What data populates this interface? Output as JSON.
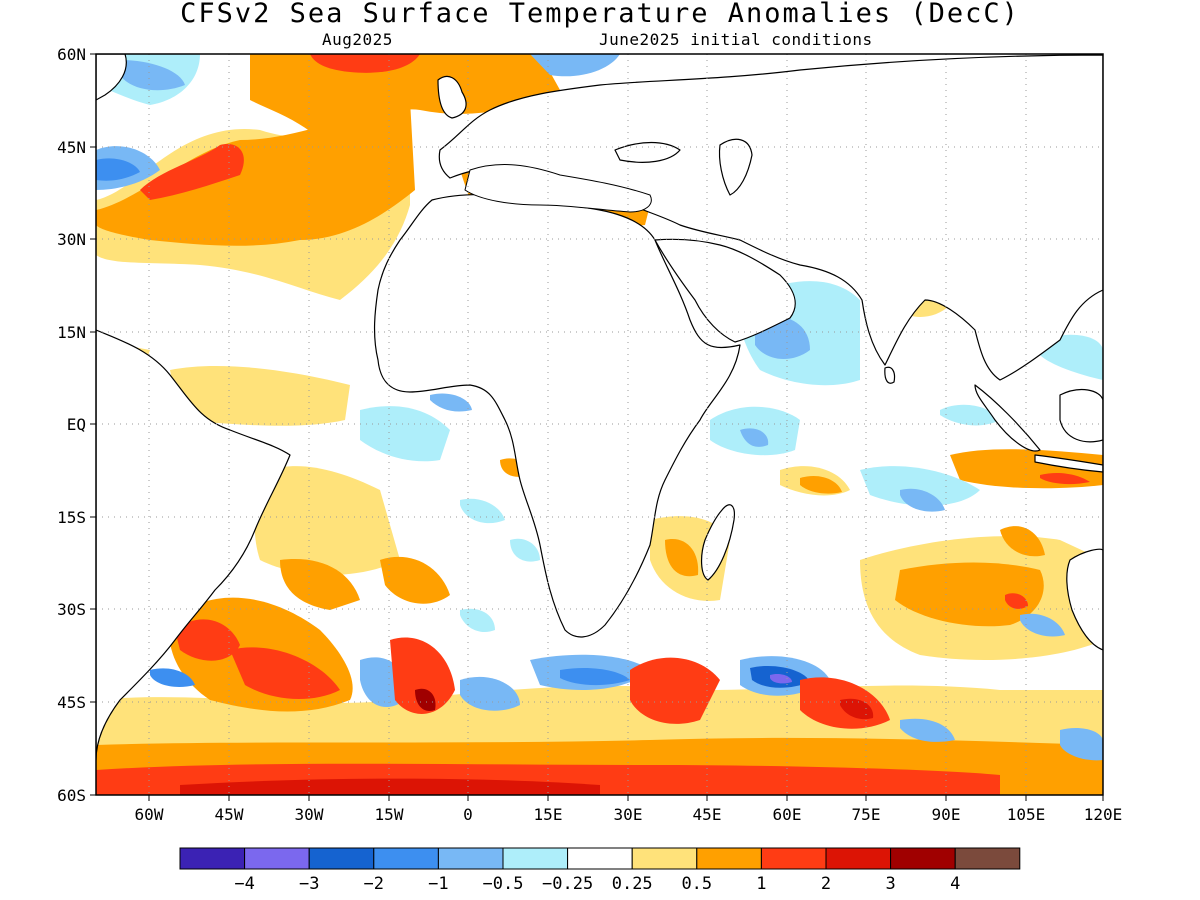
{
  "header": {
    "title": "CFSv2 Sea Surface Temperature Anomalies (DecC)",
    "valid_month": "Aug2025",
    "initial_conditions": "June2025 initial conditions"
  },
  "axes": {
    "lon_labels": [
      "60W",
      "45W",
      "30W",
      "15W",
      "0",
      "15E",
      "30E",
      "45E",
      "60E",
      "75E",
      "90E",
      "105E",
      "120E"
    ],
    "lat_labels": [
      "60N",
      "45N",
      "30N",
      "15N",
      "EQ",
      "15S",
      "30S",
      "45S",
      "60S"
    ]
  },
  "colorbar": {
    "colors": [
      "#3b22b4",
      "#7b68ee",
      "#1563d0",
      "#3d8ff0",
      "#78b8f5",
      "#aeeefa",
      "#ffffff",
      "#ffe27a",
      "#ffa000",
      "#ff3c14",
      "#dc1405",
      "#a00000",
      "#7b4a3c"
    ],
    "labels": [
      "−4",
      "−3",
      "−2",
      "−1",
      "−0.5",
      "−0.25",
      "0.25",
      "0.5",
      "1",
      "2",
      "3",
      "4"
    ]
  }
}
